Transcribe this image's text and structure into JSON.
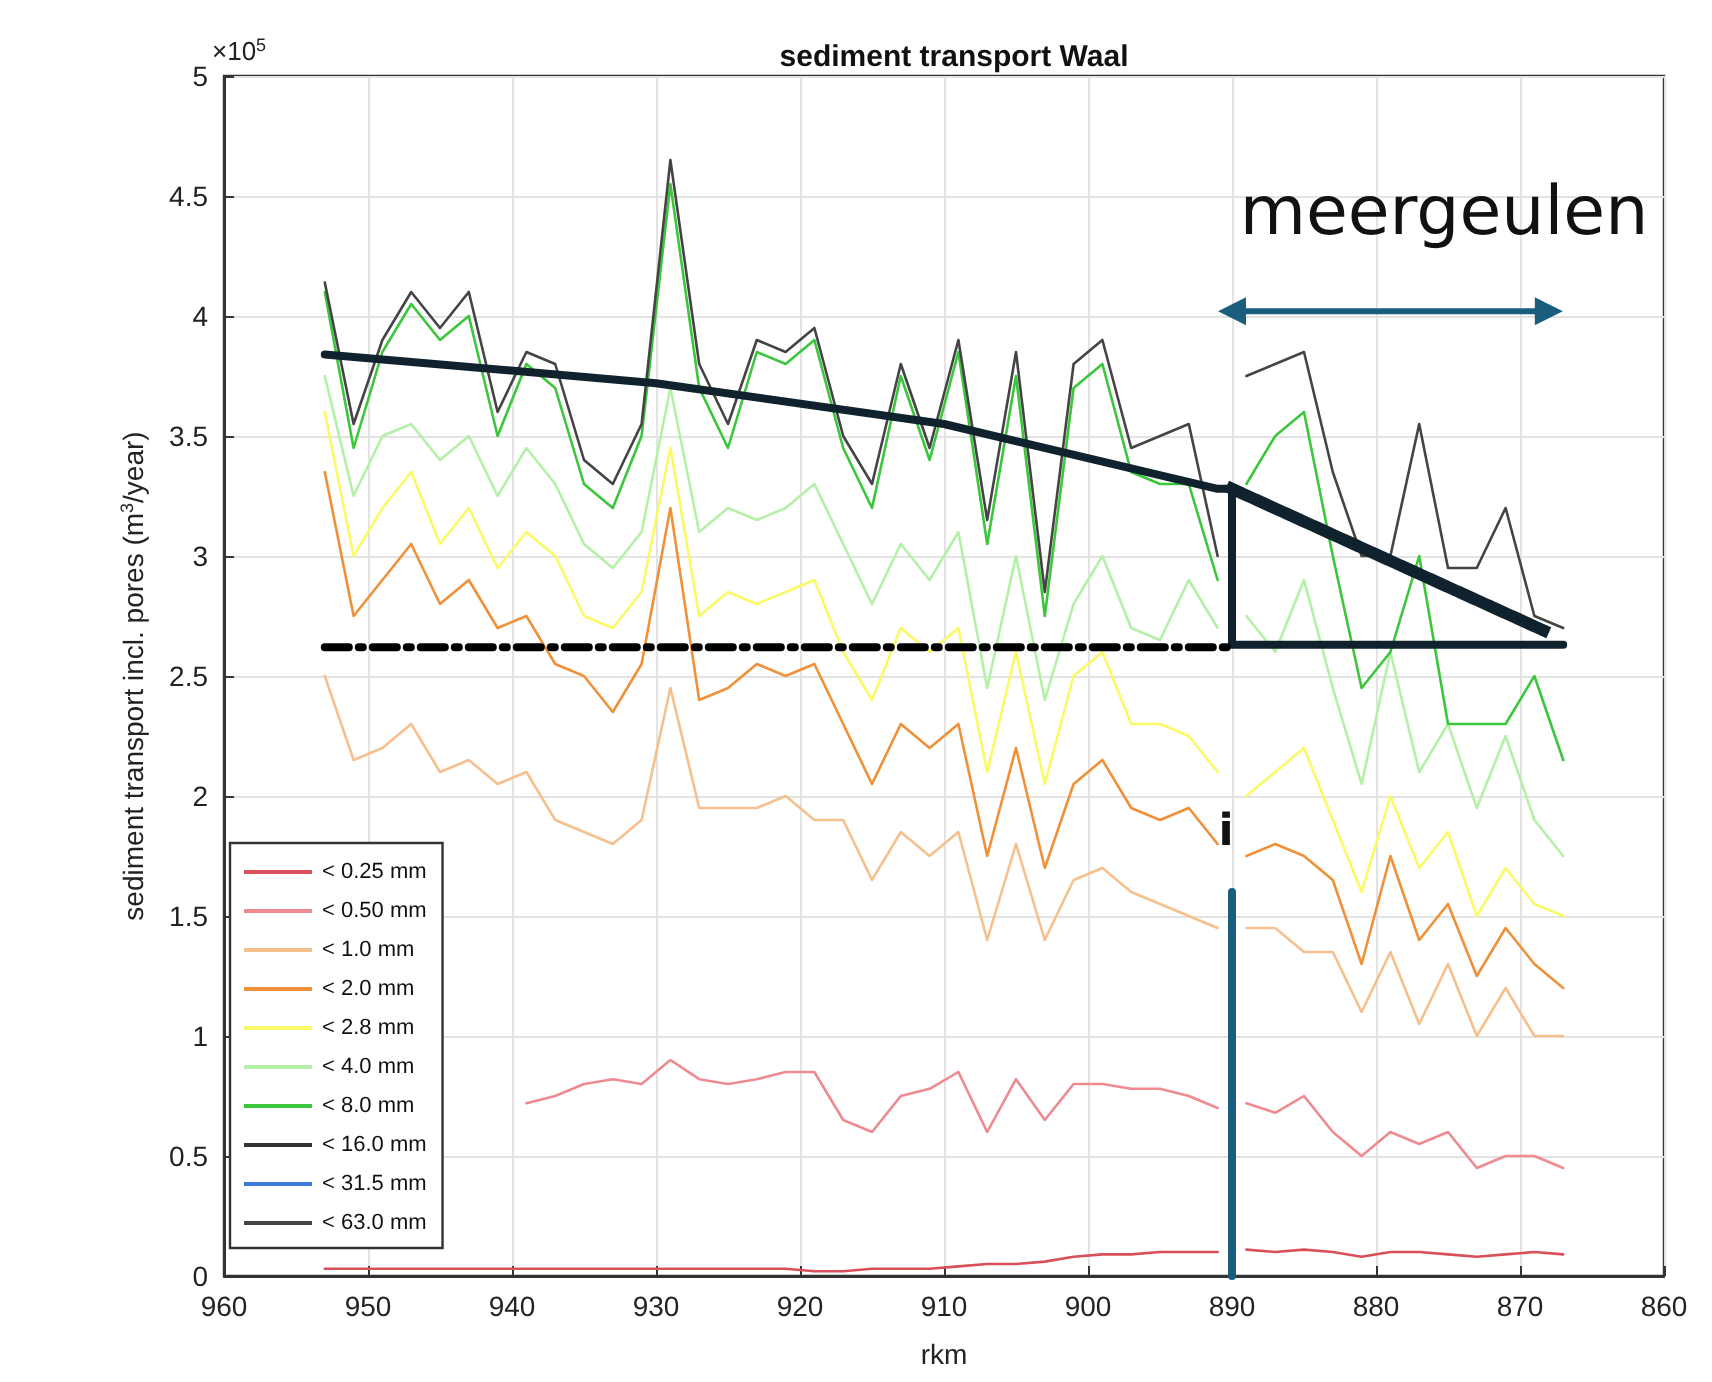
{
  "chart_data": {
    "type": "line",
    "title": "sediment transport Waal",
    "xlabel": "rkm",
    "ylabel": "sediment transport incl. pores (m$^{3}$/year)",
    "annotations": [
      "×10$^{5}$",
      "meergeulen",
      "i"
    ],
    "xlim": [
      960,
      860
    ],
    "xticks": [
      960,
      950,
      940,
      930,
      920,
      910,
      900,
      890,
      880,
      870,
      860
    ],
    "ylim": [
      0,
      5
    ],
    "yticks": [
      0,
      0.5,
      1,
      1.5,
      2,
      2.5,
      3,
      3.5,
      4,
      4.5,
      5
    ],
    "grid": true,
    "legend": "bottom left",
    "marker": "none",
    "line_style": "solid",
    "x": [
      953,
      951,
      949,
      947,
      945,
      943,
      941,
      939,
      937,
      935,
      933,
      931,
      929,
      927,
      925,
      923,
      921,
      919,
      917,
      915,
      913,
      911,
      909,
      907,
      905,
      903,
      901,
      899,
      897,
      895,
      893,
      891,
      890,
      889,
      887,
      885,
      883,
      881,
      879,
      877,
      875,
      873,
      871,
      869,
      867
    ],
    "series": [
      {
        "name": "< 0.25 mm",
        "color": "#d9505a",
        "values": [
          0.03,
          0.03,
          0.03,
          0.03,
          0.03,
          0.03,
          0.03,
          0.03,
          0.03,
          0.03,
          0.03,
          0.03,
          0.03,
          0.03,
          0.03,
          0.03,
          0.03,
          0.02,
          0.02,
          0.03,
          0.03,
          0.03,
          0.04,
          0.05,
          0.05,
          0.06,
          0.08,
          0.09,
          0.09,
          0.1,
          0.1,
          0.1,
          null,
          0.11,
          0.1,
          0.11,
          0.1,
          0.08,
          0.1,
          0.1,
          0.09,
          0.08,
          0.09,
          0.1,
          0.09
        ]
      },
      {
        "name": "< 0.50 mm",
        "color": "#ee8a90",
        "values": [
          null,
          null,
          null,
          null,
          null,
          null,
          null,
          0.72,
          0.75,
          0.8,
          0.82,
          0.8,
          0.9,
          0.82,
          0.8,
          0.82,
          0.85,
          0.85,
          0.65,
          0.6,
          0.75,
          0.78,
          0.85,
          0.6,
          0.82,
          0.65,
          0.8,
          0.8,
          0.78,
          0.78,
          0.75,
          0.7,
          null,
          0.72,
          0.68,
          0.75,
          0.6,
          0.5,
          0.6,
          0.55,
          0.6,
          0.45,
          0.5,
          0.5,
          0.45
        ]
      },
      {
        "name": "< 1.0 mm",
        "color": "#f5c08e",
        "values": [
          2.5,
          2.15,
          2.2,
          2.3,
          2.1,
          2.15,
          2.05,
          2.1,
          1.9,
          1.85,
          1.8,
          1.9,
          2.45,
          1.95,
          1.95,
          1.95,
          2.0,
          1.9,
          1.9,
          1.65,
          1.85,
          1.75,
          1.85,
          1.4,
          1.8,
          1.4,
          1.65,
          1.7,
          1.6,
          1.55,
          1.5,
          1.45,
          null,
          1.45,
          1.45,
          1.35,
          1.35,
          1.1,
          1.35,
          1.05,
          1.3,
          1.0,
          1.2,
          1.0,
          1.0
        ]
      },
      {
        "name": "< 2.0 mm",
        "color": "#f0913a",
        "values": [
          3.35,
          2.75,
          2.9,
          3.05,
          2.8,
          2.9,
          2.7,
          2.75,
          2.55,
          2.5,
          2.35,
          2.55,
          3.2,
          2.4,
          2.45,
          2.55,
          2.5,
          2.55,
          2.3,
          2.05,
          2.3,
          2.2,
          2.3,
          1.75,
          2.2,
          1.7,
          2.05,
          2.15,
          1.95,
          1.9,
          1.95,
          1.8,
          null,
          1.75,
          1.8,
          1.75,
          1.65,
          1.3,
          1.75,
          1.4,
          1.55,
          1.25,
          1.45,
          1.3,
          1.2
        ]
      },
      {
        "name": "< 2.8 mm",
        "color": "#fafa66",
        "values": [
          3.6,
          3.0,
          3.2,
          3.35,
          3.05,
          3.2,
          2.95,
          3.1,
          3.0,
          2.75,
          2.7,
          2.85,
          3.45,
          2.75,
          2.85,
          2.8,
          2.85,
          2.9,
          2.6,
          2.4,
          2.7,
          2.6,
          2.7,
          2.1,
          2.6,
          2.05,
          2.5,
          2.6,
          2.3,
          2.3,
          2.25,
          2.1,
          null,
          2.0,
          2.1,
          2.2,
          1.9,
          1.6,
          2.0,
          1.7,
          1.85,
          1.5,
          1.7,
          1.55,
          1.5
        ]
      },
      {
        "name": "< 4.0 mm",
        "color": "#b4f0a8",
        "values": [
          3.75,
          3.25,
          3.5,
          3.55,
          3.4,
          3.5,
          3.25,
          3.45,
          3.3,
          3.05,
          2.95,
          3.1,
          3.7,
          3.1,
          3.2,
          3.15,
          3.2,
          3.3,
          3.05,
          2.8,
          3.05,
          2.9,
          3.1,
          2.45,
          3.0,
          2.4,
          2.8,
          3.0,
          2.7,
          2.65,
          2.9,
          2.7,
          null,
          2.75,
          2.6,
          2.9,
          2.45,
          2.05,
          2.6,
          2.1,
          2.3,
          1.95,
          2.25,
          1.9,
          1.75
        ]
      },
      {
        "name": "< 8.0 mm",
        "color": "#3cc63c",
        "values": [
          4.1,
          3.45,
          3.85,
          4.05,
          3.9,
          4.0,
          3.5,
          3.8,
          3.7,
          3.3,
          3.2,
          3.5,
          4.55,
          3.7,
          3.45,
          3.85,
          3.8,
          3.9,
          3.45,
          3.2,
          3.75,
          3.4,
          3.85,
          3.05,
          3.75,
          2.75,
          3.7,
          3.8,
          3.35,
          3.3,
          3.3,
          2.9,
          null,
          3.3,
          3.5,
          3.6,
          3.0,
          2.45,
          2.6,
          3.0,
          2.3,
          2.3,
          2.3,
          2.5,
          2.15
        ]
      },
      {
        "name": "< 16.0 mm",
        "color": "#333333",
        "values": [
          null,
          null,
          null,
          null,
          null,
          null,
          null,
          null,
          null,
          null,
          null,
          null,
          null,
          null,
          null,
          null,
          null,
          null,
          null,
          null,
          null,
          null,
          null,
          null,
          null,
          null,
          null,
          null,
          null,
          null,
          null,
          null,
          null,
          null,
          null,
          null,
          null,
          null,
          null,
          null,
          null,
          null,
          null,
          null,
          null
        ]
      },
      {
        "name": "< 31.5 mm",
        "color": "#3a7bd5",
        "values": [
          null,
          null,
          null,
          null,
          null,
          null,
          null,
          null,
          null,
          null,
          null,
          null,
          null,
          null,
          null,
          null,
          null,
          null,
          null,
          null,
          null,
          null,
          null,
          null,
          null,
          null,
          null,
          null,
          null,
          null,
          null,
          null,
          null,
          null,
          null,
          null,
          null,
          null,
          null,
          null,
          null,
          null,
          null,
          null,
          null
        ]
      },
      {
        "name": "< 63.0 mm",
        "color": "#444444",
        "values": [
          4.14,
          3.55,
          3.9,
          4.1,
          3.95,
          4.1,
          3.6,
          3.85,
          3.8,
          3.4,
          3.3,
          3.55,
          4.65,
          3.8,
          3.55,
          3.9,
          3.85,
          3.95,
          3.5,
          3.3,
          3.8,
          3.45,
          3.9,
          3.15,
          3.85,
          2.85,
          3.8,
          3.9,
          3.45,
          3.5,
          3.55,
          3.0,
          null,
          3.75,
          3.8,
          3.85,
          3.35,
          3.0,
          3.0,
          3.55,
          2.95,
          2.95,
          3.2,
          2.75,
          2.7
        ]
      },
      {
        "color": "#10222e",
        "x": [
          953,
          930,
          910,
          891,
          890,
          890,
          867
        ],
        "values": [
          3.84,
          3.72,
          3.55,
          3.28,
          3.28,
          2.63,
          2.63
        ]
      },
      {
        "color": "#10222e",
        "line_style": "dotted",
        "x": [
          890,
          868
        ],
        "values": [
          3.28,
          2.68
        ]
      },
      {
        "color": "#000000",
        "line_style": "dashed",
        "x": [
          953,
          890
        ],
        "values": [
          2.62,
          2.62
        ]
      },
      {
        "color": "#1a5e7e",
        "x": [
          890,
          890
        ],
        "values": [
          0,
          1.6
        ]
      },
      {
        "color": "#1a5e7e",
        "marker": "triangle",
        "x": [
          890,
          868
        ],
        "values": [
          4.02,
          4.02
        ]
      }
    ]
  }
}
